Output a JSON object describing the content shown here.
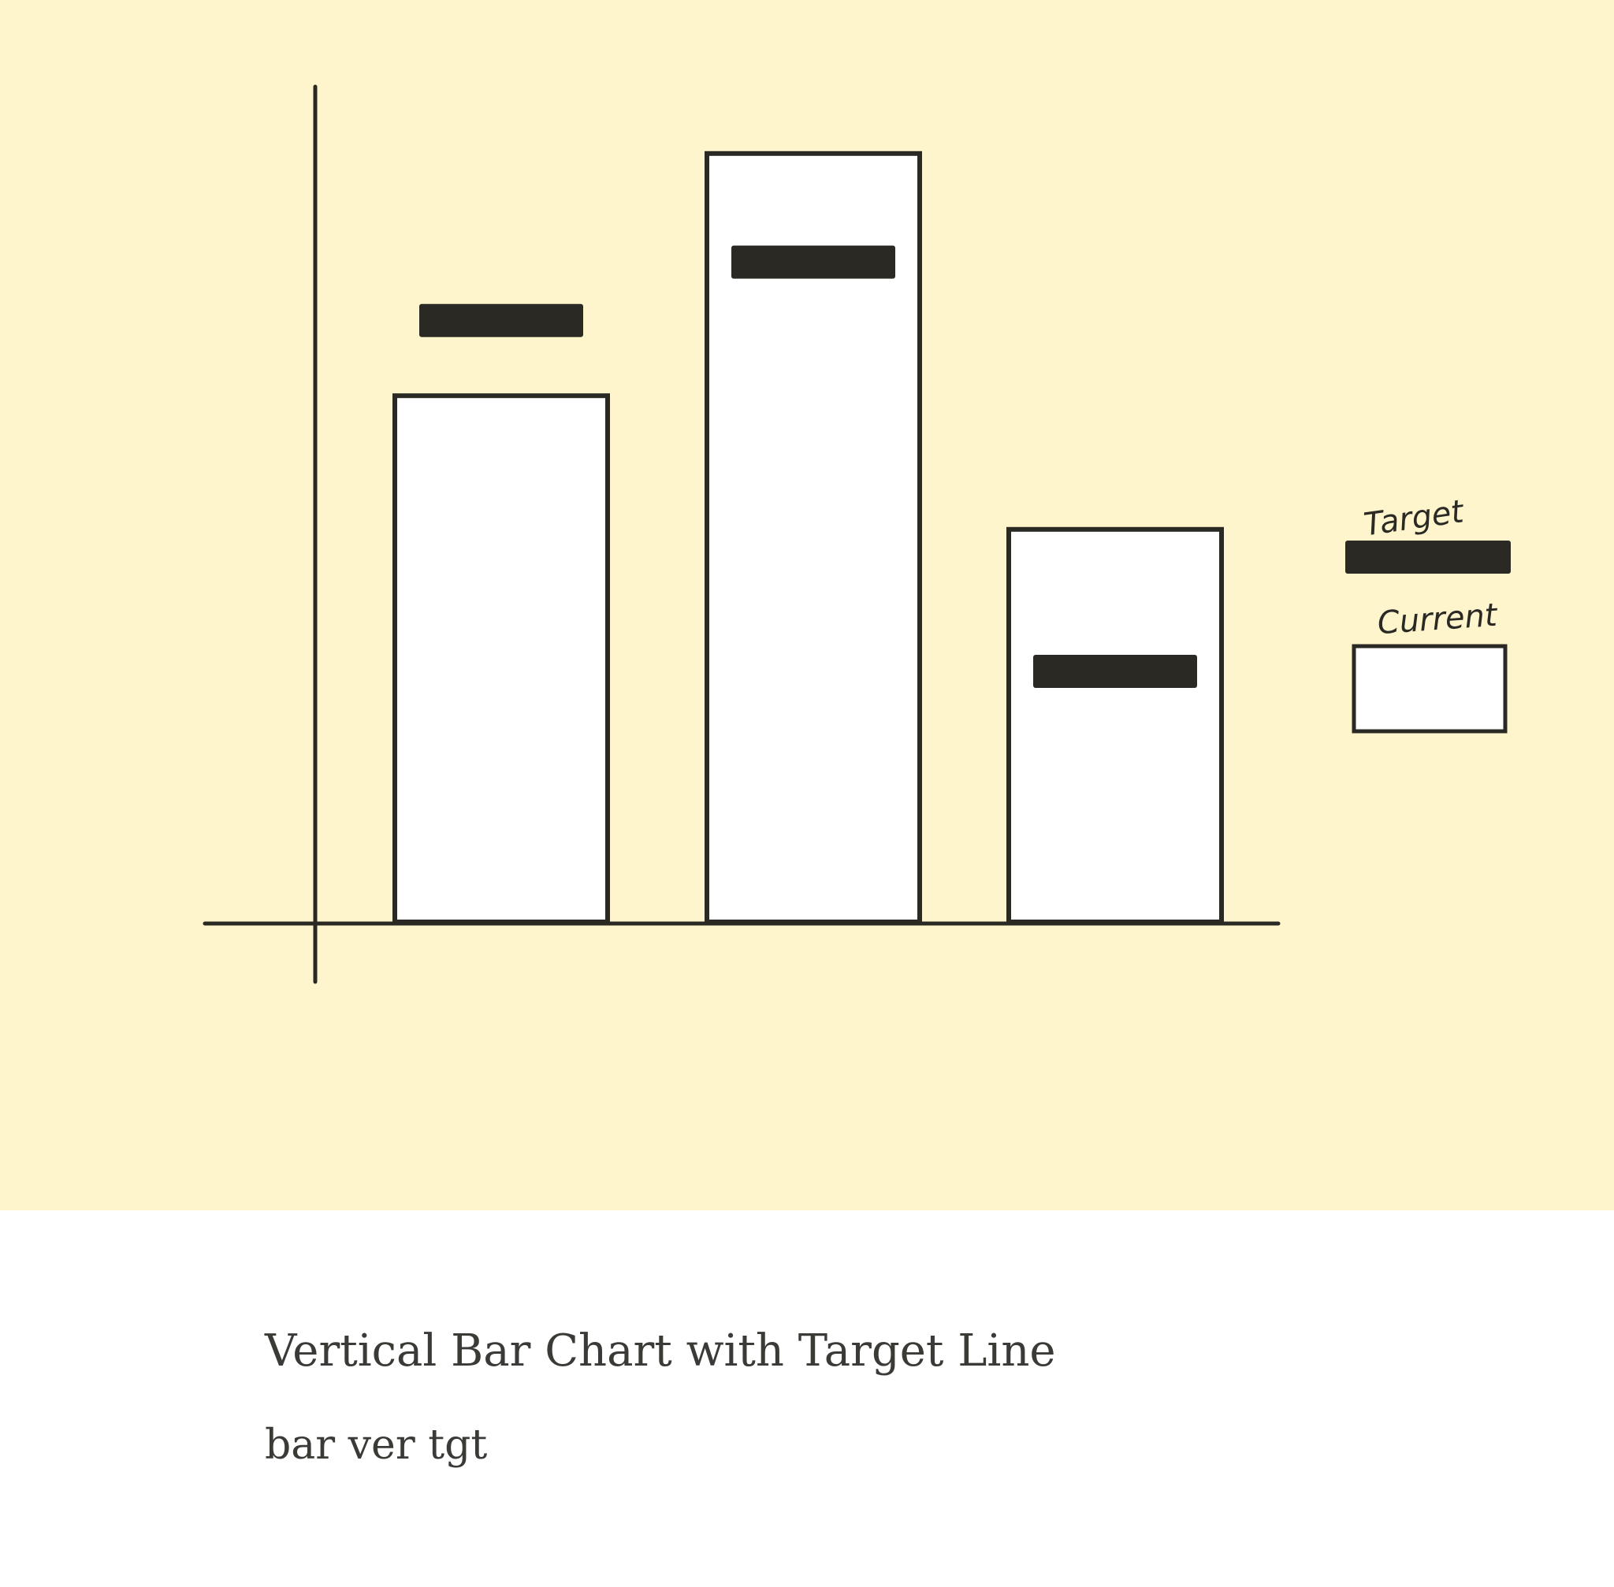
{
  "colors": {
    "panel_background": "#fef5cd",
    "card_background": "#ffffff",
    "ink": "#2a2924",
    "bar_fill": "#ffffff"
  },
  "chart_data": {
    "type": "bar",
    "categories": [
      "",
      "",
      ""
    ],
    "series": [
      {
        "name": "Current",
        "values": [
          63,
          92,
          47
        ]
      },
      {
        "name": "Target",
        "values": [
          72,
          79,
          30
        ]
      }
    ],
    "ylim": [
      0,
      100
    ],
    "grid": false,
    "legend": "right",
    "style": "hand-drawn sketch"
  },
  "legend": {
    "target_label": "Target",
    "current_label": "Current"
  },
  "caption": {
    "title": "Vertical Bar Chart with Target Line",
    "tag": "bar ver tgt"
  }
}
